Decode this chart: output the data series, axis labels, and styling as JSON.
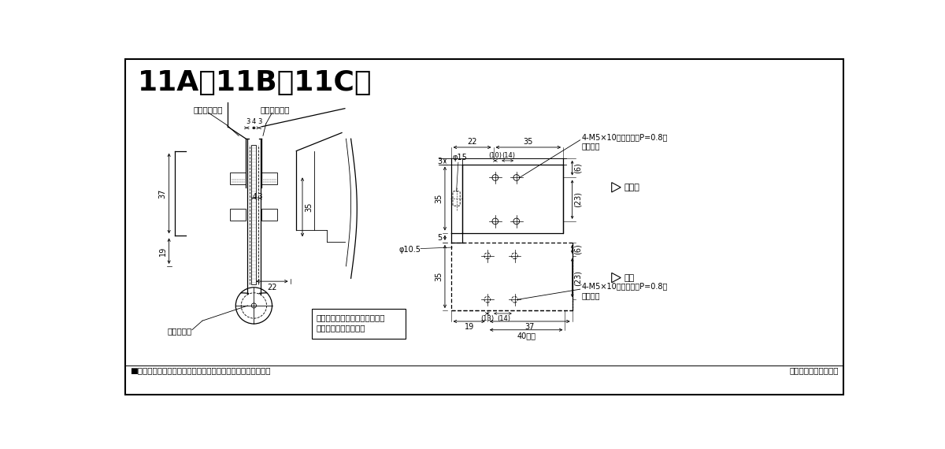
{
  "title": "11A・11B・11C用",
  "bg_color": "#ffffff",
  "lc": "#000000",
  "note1": "■タップ型は（　）内寸法にて製作出来ます。（オプション）",
  "note2": "本図は右開きを示す。",
  "label_urahon1": "裏板（別途）",
  "label_urahon2": "裏板（別途）",
  "label_setsuji": "セットネジ",
  "label_setsuji_note1": "セットネジは軸の抜止めです。",
  "label_setsuji_note2": "必ず締込んで下さい。",
  "label_door": "ドア側",
  "label_frame": "枚側",
  "label_screw_top1": "4-M5×10皿小ネジ（P=0.8）",
  "label_screw_top2": "（別途）",
  "label_screw_bot1": "4-M5×10皿小ネジ（P=0.8）",
  "label_screw_bot2": "（別途）"
}
